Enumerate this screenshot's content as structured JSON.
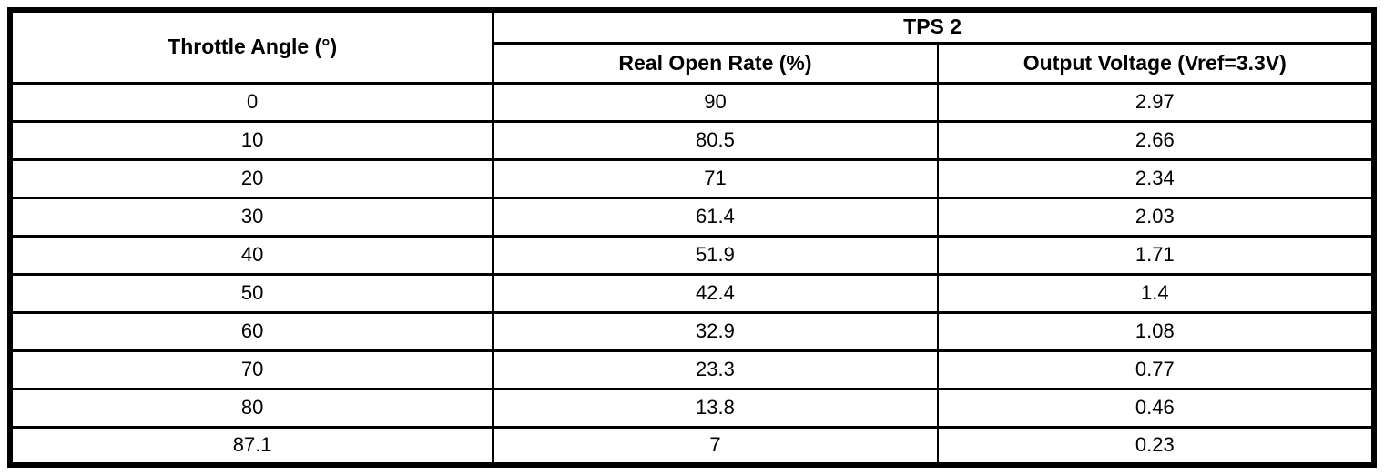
{
  "table": {
    "headers": {
      "throttle_angle": "Throttle Angle (°)",
      "group": "TPS 2",
      "real_open_rate": "Real Open Rate (%)",
      "output_voltage": "Output Voltage (Vref=3.3V)"
    },
    "rows": [
      [
        "0",
        "90",
        "2.97"
      ],
      [
        "10",
        "80.5",
        "2.66"
      ],
      [
        "20",
        "71",
        "2.34"
      ],
      [
        "30",
        "61.4",
        "2.03"
      ],
      [
        "40",
        "51.9",
        "1.71"
      ],
      [
        "50",
        "42.4",
        "1.4"
      ],
      [
        "60",
        "32.9",
        "1.08"
      ],
      [
        "70",
        "23.3",
        "0.77"
      ],
      [
        "80",
        "13.8",
        "0.46"
      ],
      [
        "87.1",
        "7",
        "0.23"
      ]
    ],
    "colors": {
      "border": "#000000",
      "background": "#ffffff",
      "text": "#000000"
    }
  },
  "chart_data": {
    "type": "table",
    "title": "TPS 2",
    "columns": [
      "Throttle Angle (°)",
      "Real Open Rate (%)",
      "Output Voltage (Vref=3.3V)"
    ],
    "x": [
      0,
      10,
      20,
      30,
      40,
      50,
      60,
      70,
      80,
      87.1
    ],
    "series": [
      {
        "name": "Real Open Rate (%)",
        "values": [
          90,
          80.5,
          71,
          61.4,
          51.9,
          42.4,
          32.9,
          23.3,
          13.8,
          7
        ]
      },
      {
        "name": "Output Voltage (Vref=3.3V)",
        "values": [
          2.97,
          2.66,
          2.34,
          2.03,
          1.71,
          1.4,
          1.08,
          0.77,
          0.46,
          0.23
        ]
      }
    ],
    "layout_hints": {
      "grid": "full-borders",
      "header_group_span": 2,
      "first_column_merged_rows": 2
    }
  }
}
